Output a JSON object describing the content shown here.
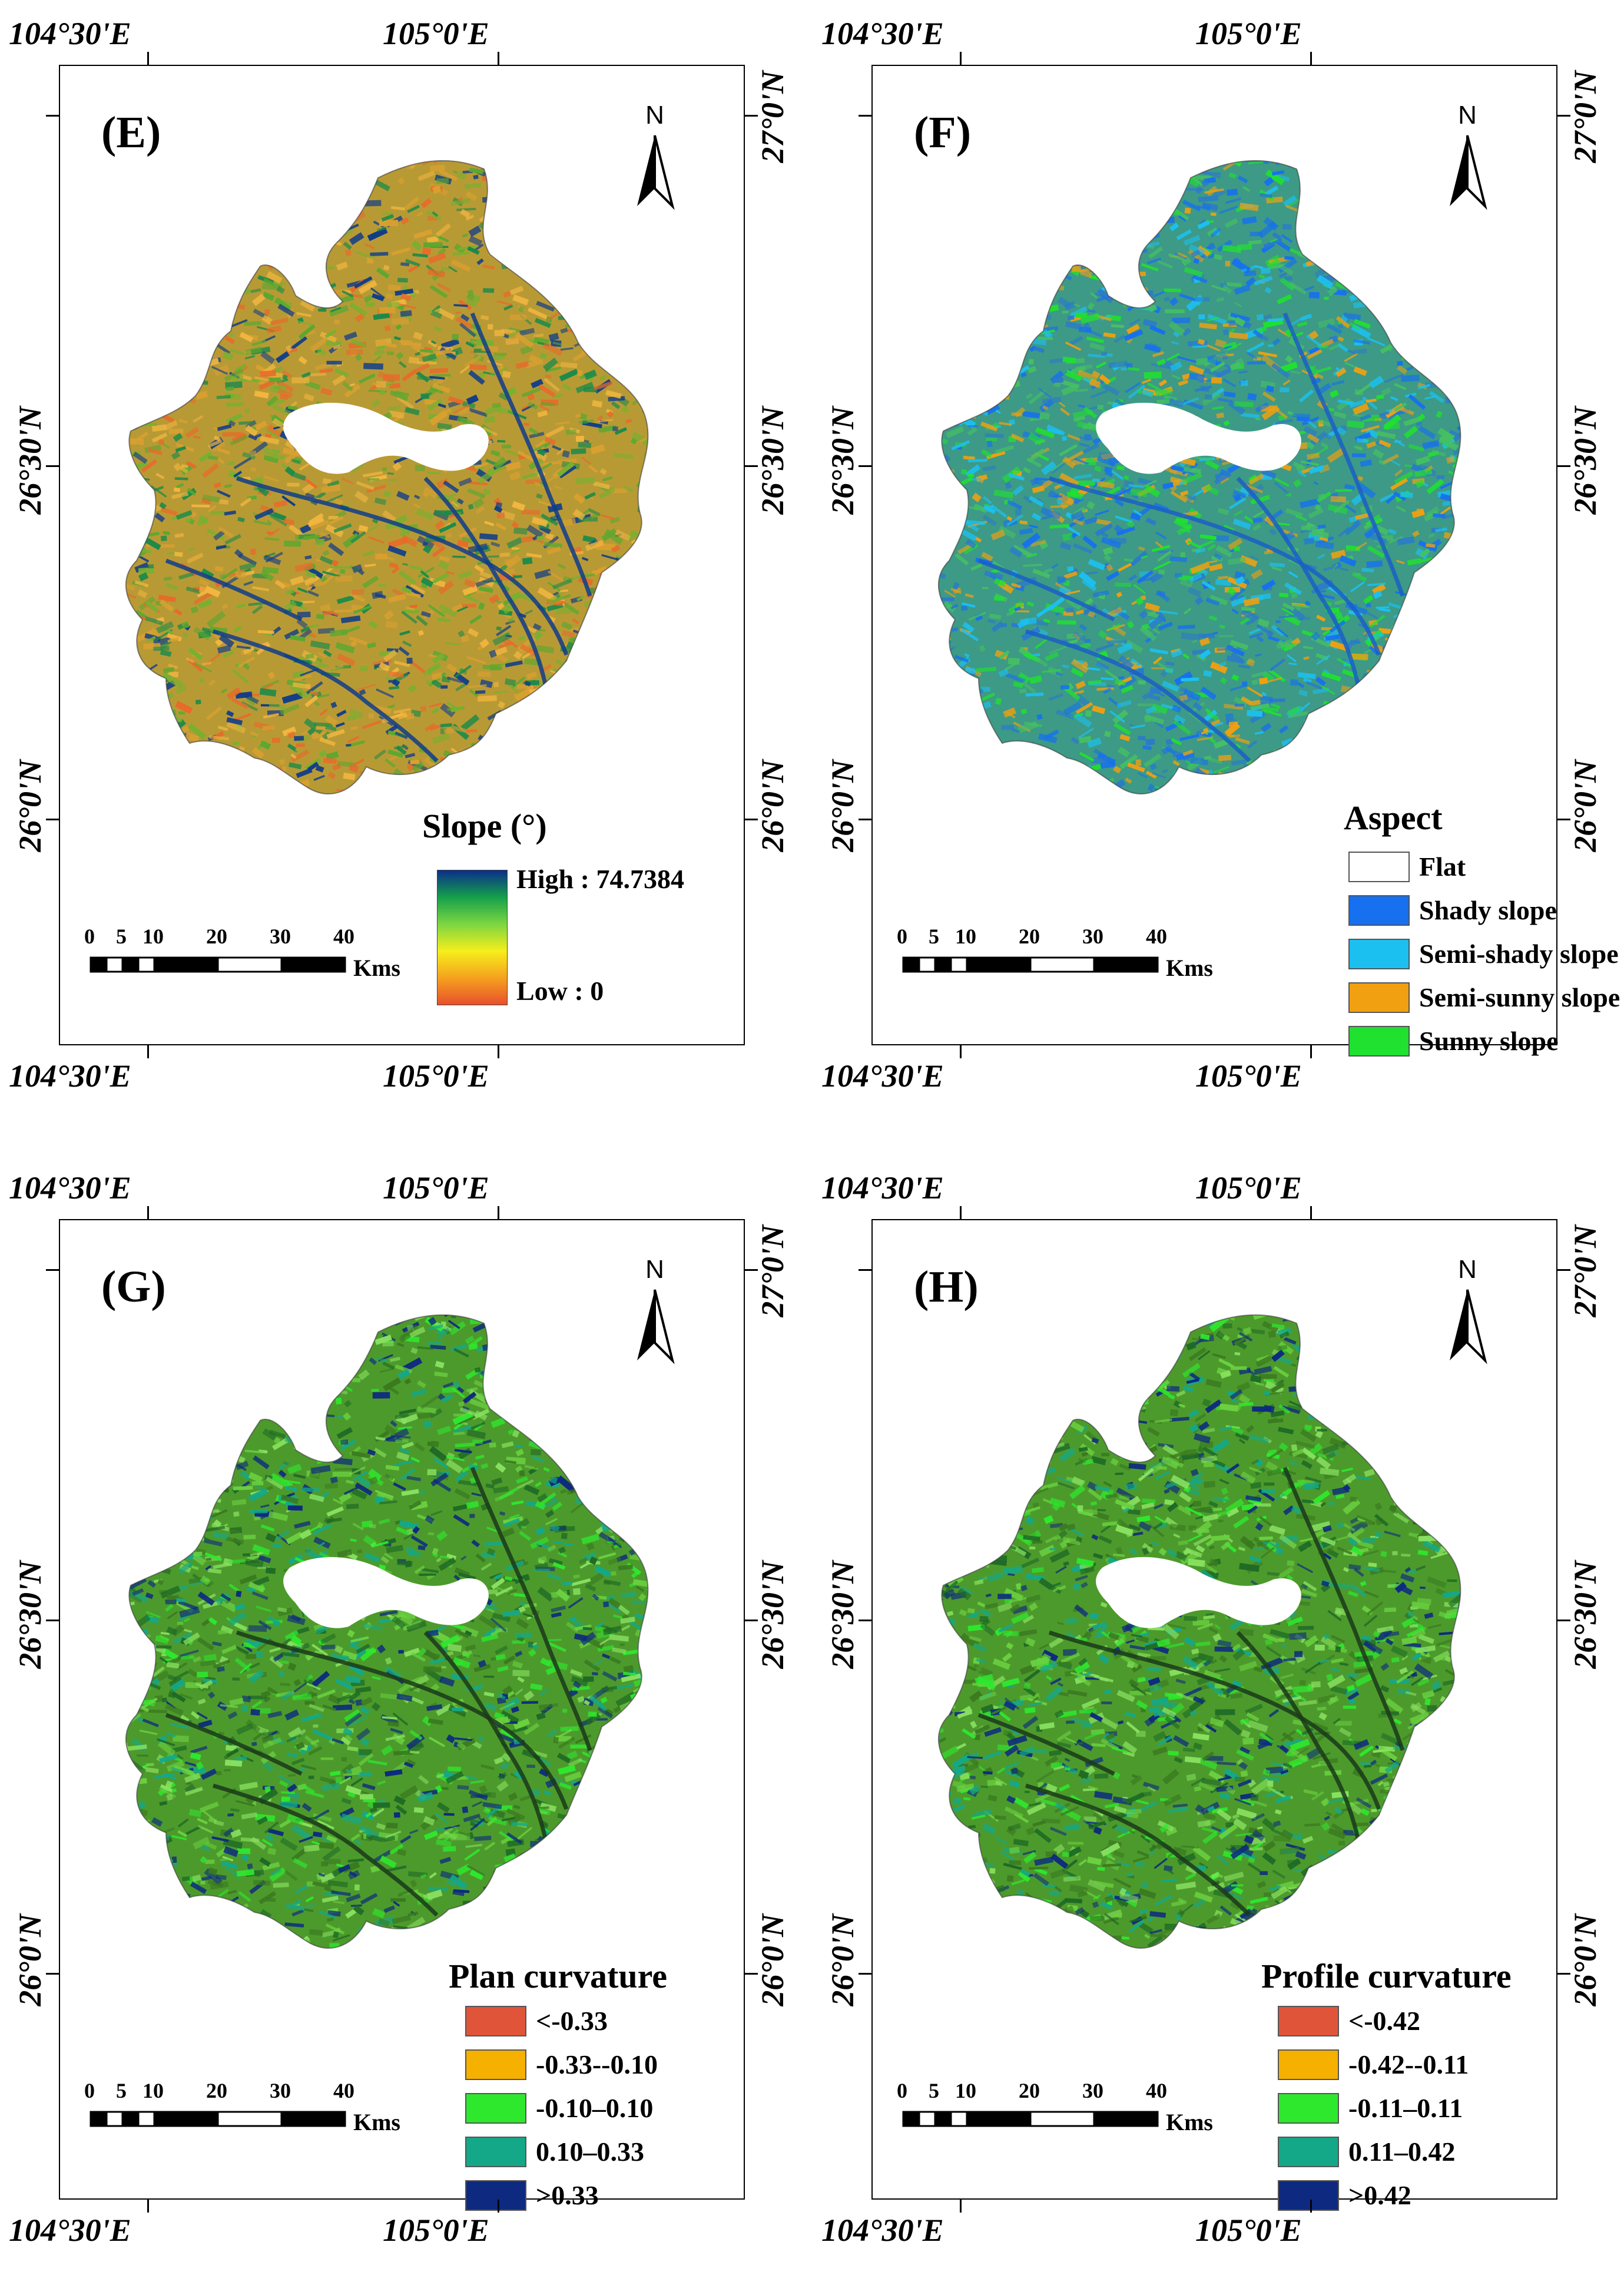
{
  "coords": {
    "lon_left": "104°30'E",
    "lon_right": "105°0'E",
    "lat_top": "27°0'N",
    "lat_mid": "26°30'N",
    "lat_bottom": "26°0'N"
  },
  "north_arrow": {
    "label": "N",
    "icon": "north-arrow-icon"
  },
  "scale_bar": {
    "labels": [
      "0",
      "5",
      "10",
      "20",
      "30",
      "40"
    ],
    "unit": "Kms"
  },
  "panels": [
    {
      "id": "E",
      "label": "(E)",
      "fill_style": "slope",
      "legend": {
        "type": "ramp",
        "title": "Slope (°)",
        "high": "High : 74.7384",
        "low": "Low : 0",
        "colors": [
          "#0b2e8a",
          "#14a04a",
          "#7cd642",
          "#f6ee1c",
          "#f5a21e",
          "#e8502d"
        ]
      }
    },
    {
      "id": "F",
      "label": "(F)",
      "fill_style": "aspect",
      "legend": {
        "type": "classes",
        "title": "Aspect",
        "items": [
          {
            "label": "Flat",
            "color": "#ffffff"
          },
          {
            "label": "Shady slope",
            "color": "#1670f0"
          },
          {
            "label": "Semi-shady slope",
            "color": "#1cc0f0"
          },
          {
            "label": "Semi-sunny slope",
            "color": "#f0a010"
          },
          {
            "label": "Sunny slope",
            "color": "#20e030"
          }
        ]
      }
    },
    {
      "id": "G",
      "label": "(G)",
      "fill_style": "curvature",
      "legend": {
        "type": "classes",
        "title": "Plan curvature",
        "items": [
          {
            "label": "<-0.33",
            "color": "#e0553a"
          },
          {
            "label": "-0.33--0.10",
            "color": "#f5b000"
          },
          {
            "label": "-0.10–0.10",
            "color": "#2ee82e"
          },
          {
            "label": "0.10–0.33",
            "color": "#14a888"
          },
          {
            "label": ">0.33",
            "color": "#0d2a80"
          }
        ]
      }
    },
    {
      "id": "H",
      "label": "(H)",
      "fill_style": "curvature",
      "legend": {
        "type": "classes",
        "title": "Profile curvature",
        "items": [
          {
            "label": "<-0.42",
            "color": "#e0553a"
          },
          {
            "label": "-0.42--0.11",
            "color": "#f5b000"
          },
          {
            "label": "-0.11–0.11",
            "color": "#2ee82e"
          },
          {
            "label": "0.11–0.42",
            "color": "#14a888"
          },
          {
            "label": ">0.42",
            "color": "#0d2a80"
          }
        ]
      }
    }
  ]
}
